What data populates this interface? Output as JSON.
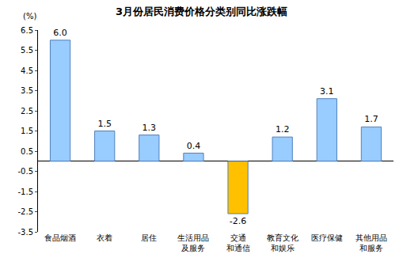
{
  "chart_data": {
    "type": "bar",
    "title": "3月份居民消费价格分类别同比涨跌幅",
    "y_label": "(%)",
    "categories": [
      "食品烟酒",
      "衣着",
      "居住",
      "生活用品\n及服务",
      "交通\n和通信",
      "教育文化\n和娱乐",
      "医疗保健",
      "其他用品\n和服务"
    ],
    "values": [
      6.0,
      1.5,
      1.3,
      0.4,
      -2.6,
      1.2,
      3.1,
      1.7
    ],
    "value_labels": [
      "6.0",
      "1.5",
      "1.3",
      "0.4",
      "-2.6",
      "1.2",
      "3.1",
      "1.7"
    ],
    "colors": [
      "#99ccff",
      "#99ccff",
      "#99ccff",
      "#99ccff",
      "#ffc000",
      "#99ccff",
      "#99ccff",
      "#99ccff"
    ],
    "ylim": [
      -3.5,
      6.5
    ],
    "yticks": [
      -3.5,
      -2.5,
      -1.5,
      -0.5,
      0.5,
      1.5,
      2.5,
      3.5,
      4.5,
      5.5,
      6.5
    ],
    "grid": false,
    "data_labels": true
  }
}
